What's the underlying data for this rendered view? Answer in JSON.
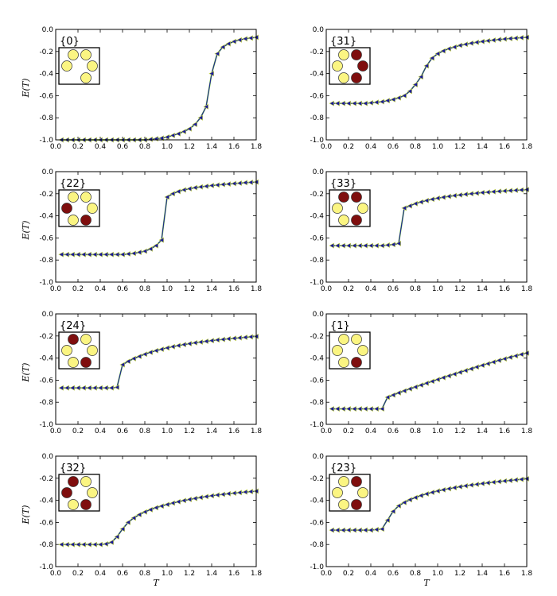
{
  "figure": {
    "xlabel": "T",
    "ylabel": "E(T)"
  },
  "colors": {
    "line_green": "#7ac943",
    "line_blue": "#1a1a9a",
    "marker_fill": "#1a1a9a",
    "marker_edge": "#c8d84a",
    "disk_yellow": "#fbf582",
    "disk_red": "#7f0e0e",
    "axis": "#000000"
  },
  "chart_data": [
    {
      "type": "line",
      "label": "{0}",
      "xlim": [
        0,
        1.8
      ],
      "ylim": [
        -1.0,
        0.0
      ],
      "xticks": [
        "0.0",
        "0.2",
        "0.4",
        "0.6",
        "0.8",
        "1.0",
        "1.2",
        "1.4",
        "1.6",
        "1.8"
      ],
      "yticks": [
        "0.0",
        "-0.2",
        "-0.4",
        "-0.6",
        "-0.8",
        "-1.0"
      ],
      "x": [
        0.05,
        0.1,
        0.15,
        0.2,
        0.25,
        0.3,
        0.35,
        0.4,
        0.45,
        0.5,
        0.55,
        0.6,
        0.65,
        0.7,
        0.75,
        0.8,
        0.85,
        0.9,
        0.95,
        1.0,
        1.05,
        1.1,
        1.15,
        1.2,
        1.25,
        1.3,
        1.35,
        1.4,
        1.45,
        1.5,
        1.55,
        1.6,
        1.65,
        1.7,
        1.75,
        1.8
      ],
      "series": [
        {
          "name": "E",
          "values": [
            -1,
            -1,
            -1,
            -1,
            -1,
            -1,
            -1,
            -1,
            -1,
            -1,
            -1,
            -1,
            -1,
            -1,
            -1,
            -1,
            -0.995,
            -0.99,
            -0.985,
            -0.975,
            -0.96,
            -0.945,
            -0.925,
            -0.9,
            -0.86,
            -0.8,
            -0.7,
            -0.4,
            -0.22,
            -0.16,
            -0.13,
            -0.11,
            -0.095,
            -0.085,
            -0.078,
            -0.072
          ]
        }
      ],
      "disks": [
        "yellow",
        "yellow",
        "yellow",
        "yellow",
        "yellow"
      ]
    },
    {
      "type": "line",
      "label": "{31}",
      "xlim": [
        0,
        1.8
      ],
      "ylim": [
        -1.0,
        0.0
      ],
      "xticks": [
        "0.0",
        "0.2",
        "0.4",
        "0.6",
        "0.8",
        "1.0",
        "1.2",
        "1.4",
        "1.6",
        "1.8"
      ],
      "yticks": [
        "0.0",
        "-0.2",
        "-0.4",
        "-0.6",
        "-0.8",
        "-1.0"
      ],
      "x": [
        0.05,
        0.1,
        0.15,
        0.2,
        0.25,
        0.3,
        0.35,
        0.4,
        0.45,
        0.5,
        0.55,
        0.6,
        0.65,
        0.7,
        0.75,
        0.8,
        0.85,
        0.9,
        0.95,
        1.0,
        1.05,
        1.1,
        1.15,
        1.2,
        1.25,
        1.3,
        1.35,
        1.4,
        1.45,
        1.5,
        1.55,
        1.6,
        1.65,
        1.7,
        1.75,
        1.8
      ],
      "series": [
        {
          "name": "E",
          "values": [
            -0.67,
            -0.67,
            -0.67,
            -0.67,
            -0.67,
            -0.67,
            -0.67,
            -0.665,
            -0.66,
            -0.655,
            -0.645,
            -0.635,
            -0.62,
            -0.6,
            -0.56,
            -0.5,
            -0.43,
            -0.33,
            -0.26,
            -0.22,
            -0.195,
            -0.175,
            -0.16,
            -0.145,
            -0.135,
            -0.125,
            -0.117,
            -0.11,
            -0.103,
            -0.097,
            -0.092,
            -0.087,
            -0.083,
            -0.079,
            -0.075,
            -0.072
          ]
        }
      ],
      "disks": [
        "yellow",
        "red",
        "yellow",
        "red",
        "yellow",
        "red"
      ]
    },
    {
      "type": "line",
      "label": "{22}",
      "xlim": [
        0,
        1.8
      ],
      "ylim": [
        -1.0,
        0.0
      ],
      "xticks": [
        "0.0",
        "0.2",
        "0.4",
        "0.6",
        "0.8",
        "1.0",
        "1.2",
        "1.4",
        "1.6",
        "1.8"
      ],
      "yticks": [
        "0.0",
        "-0.2",
        "-0.4",
        "-0.6",
        "-0.8",
        "-1.0"
      ],
      "x": [
        0.05,
        0.1,
        0.15,
        0.2,
        0.25,
        0.3,
        0.35,
        0.4,
        0.45,
        0.5,
        0.55,
        0.6,
        0.65,
        0.7,
        0.75,
        0.8,
        0.85,
        0.9,
        0.95,
        1.0,
        1.05,
        1.1,
        1.15,
        1.2,
        1.25,
        1.3,
        1.35,
        1.4,
        1.45,
        1.5,
        1.55,
        1.6,
        1.65,
        1.7,
        1.75,
        1.8
      ],
      "series": [
        {
          "name": "E",
          "values": [
            -0.75,
            -0.75,
            -0.75,
            -0.75,
            -0.75,
            -0.75,
            -0.75,
            -0.75,
            -0.75,
            -0.75,
            -0.75,
            -0.75,
            -0.745,
            -0.74,
            -0.73,
            -0.72,
            -0.7,
            -0.67,
            -0.62,
            -0.23,
            -0.2,
            -0.18,
            -0.165,
            -0.155,
            -0.145,
            -0.138,
            -0.132,
            -0.126,
            -0.121,
            -0.116,
            -0.112,
            -0.108,
            -0.104,
            -0.1,
            -0.097,
            -0.094
          ]
        }
      ],
      "disks": [
        "yellow",
        "yellow",
        "red",
        "yellow",
        "yellow",
        "red"
      ]
    },
    {
      "type": "line",
      "label": "{33}",
      "xlim": [
        0,
        1.8
      ],
      "ylim": [
        -1.0,
        0.0
      ],
      "xticks": [
        "0.0",
        "0.2",
        "0.4",
        "0.6",
        "0.8",
        "1.0",
        "1.2",
        "1.4",
        "1.6",
        "1.8"
      ],
      "yticks": [
        "0.0",
        "-0.2",
        "-0.4",
        "-0.6",
        "-0.8",
        "-1.0"
      ],
      "x": [
        0.05,
        0.1,
        0.15,
        0.2,
        0.25,
        0.3,
        0.35,
        0.4,
        0.45,
        0.5,
        0.55,
        0.6,
        0.65,
        0.7,
        0.75,
        0.8,
        0.85,
        0.9,
        0.95,
        1.0,
        1.05,
        1.1,
        1.15,
        1.2,
        1.25,
        1.3,
        1.35,
        1.4,
        1.45,
        1.5,
        1.55,
        1.6,
        1.65,
        1.7,
        1.75,
        1.8
      ],
      "series": [
        {
          "name": "E",
          "values": [
            -0.67,
            -0.67,
            -0.67,
            -0.67,
            -0.67,
            -0.67,
            -0.67,
            -0.67,
            -0.67,
            -0.67,
            -0.665,
            -0.66,
            -0.65,
            -0.33,
            -0.31,
            -0.29,
            -0.275,
            -0.262,
            -0.25,
            -0.24,
            -0.232,
            -0.224,
            -0.217,
            -0.211,
            -0.205,
            -0.2,
            -0.195,
            -0.19,
            -0.186,
            -0.182,
            -0.178,
            -0.175,
            -0.172,
            -0.169,
            -0.166,
            -0.163
          ]
        }
      ],
      "disks": [
        "red",
        "red",
        "yellow",
        "yellow",
        "yellow",
        "red"
      ]
    },
    {
      "type": "line",
      "label": "{24}",
      "xlim": [
        0,
        1.8
      ],
      "ylim": [
        -1.0,
        0.0
      ],
      "xticks": [
        "0.0",
        "0.2",
        "0.4",
        "0.6",
        "0.8",
        "1.0",
        "1.2",
        "1.4",
        "1.6",
        "1.8"
      ],
      "yticks": [
        "0.0",
        "-0.2",
        "-0.4",
        "-0.6",
        "-0.8",
        "-1.0"
      ],
      "x": [
        0.05,
        0.1,
        0.15,
        0.2,
        0.25,
        0.3,
        0.35,
        0.4,
        0.45,
        0.5,
        0.55,
        0.6,
        0.65,
        0.7,
        0.75,
        0.8,
        0.85,
        0.9,
        0.95,
        1.0,
        1.05,
        1.1,
        1.15,
        1.2,
        1.25,
        1.3,
        1.35,
        1.4,
        1.45,
        1.5,
        1.55,
        1.6,
        1.65,
        1.7,
        1.75,
        1.8
      ],
      "series": [
        {
          "name": "E",
          "values": [
            -0.67,
            -0.67,
            -0.67,
            -0.67,
            -0.67,
            -0.67,
            -0.67,
            -0.67,
            -0.67,
            -0.67,
            -0.665,
            -0.46,
            -0.43,
            -0.405,
            -0.385,
            -0.365,
            -0.348,
            -0.333,
            -0.32,
            -0.308,
            -0.297,
            -0.287,
            -0.278,
            -0.27,
            -0.262,
            -0.255,
            -0.248,
            -0.242,
            -0.236,
            -0.231,
            -0.226,
            -0.221,
            -0.217,
            -0.212,
            -0.208,
            -0.204
          ]
        }
      ],
      "disks": [
        "red",
        "yellow",
        "yellow",
        "yellow",
        "yellow",
        "red"
      ]
    },
    {
      "type": "line",
      "label": "{1}",
      "xlim": [
        0,
        1.8
      ],
      "ylim": [
        -1.0,
        0.0
      ],
      "xticks": [
        "0.0",
        "0.2",
        "0.4",
        "0.6",
        "0.8",
        "1.0",
        "1.2",
        "1.4",
        "1.6",
        "1.8"
      ],
      "yticks": [
        "0.0",
        "-0.2",
        "-0.4",
        "-0.6",
        "-0.8",
        "-1.0"
      ],
      "x": [
        0.05,
        0.1,
        0.15,
        0.2,
        0.25,
        0.3,
        0.35,
        0.4,
        0.45,
        0.5,
        0.55,
        0.6,
        0.65,
        0.7,
        0.75,
        0.8,
        0.85,
        0.9,
        0.95,
        1.0,
        1.05,
        1.1,
        1.15,
        1.2,
        1.25,
        1.3,
        1.35,
        1.4,
        1.45,
        1.5,
        1.55,
        1.6,
        1.65,
        1.7,
        1.75,
        1.8
      ],
      "series": [
        {
          "name": "E",
          "values": [
            -0.86,
            -0.86,
            -0.86,
            -0.86,
            -0.86,
            -0.86,
            -0.86,
            -0.86,
            -0.86,
            -0.86,
            -0.755,
            -0.735,
            -0.715,
            -0.697,
            -0.679,
            -0.662,
            -0.645,
            -0.628,
            -0.611,
            -0.594,
            -0.577,
            -0.561,
            -0.545,
            -0.529,
            -0.513,
            -0.497,
            -0.481,
            -0.466,
            -0.451,
            -0.436,
            -0.421,
            -0.407,
            -0.393,
            -0.38,
            -0.367,
            -0.355
          ]
        }
      ],
      "disks": [
        "yellow",
        "yellow",
        "yellow",
        "yellow",
        "yellow",
        "red"
      ]
    },
    {
      "type": "line",
      "label": "{32}",
      "xlim": [
        0,
        1.8
      ],
      "ylim": [
        -1.0,
        0.0
      ],
      "xticks": [
        "0.0",
        "0.2",
        "0.4",
        "0.6",
        "0.8",
        "1.0",
        "1.2",
        "1.4",
        "1.6",
        "1.8"
      ],
      "yticks": [
        "0.0",
        "-0.2",
        "-0.4",
        "-0.6",
        "-0.8",
        "-1.0"
      ],
      "x": [
        0.05,
        0.1,
        0.15,
        0.2,
        0.25,
        0.3,
        0.35,
        0.4,
        0.45,
        0.5,
        0.55,
        0.6,
        0.65,
        0.7,
        0.75,
        0.8,
        0.85,
        0.9,
        0.95,
        1.0,
        1.05,
        1.1,
        1.15,
        1.2,
        1.25,
        1.3,
        1.35,
        1.4,
        1.45,
        1.5,
        1.55,
        1.6,
        1.65,
        1.7,
        1.75,
        1.8
      ],
      "series": [
        {
          "name": "E",
          "values": [
            -0.8,
            -0.8,
            -0.8,
            -0.8,
            -0.8,
            -0.8,
            -0.8,
            -0.8,
            -0.795,
            -0.78,
            -0.73,
            -0.66,
            -0.6,
            -0.56,
            -0.53,
            -0.505,
            -0.485,
            -0.467,
            -0.452,
            -0.438,
            -0.425,
            -0.413,
            -0.402,
            -0.392,
            -0.383,
            -0.374,
            -0.366,
            -0.359,
            -0.352,
            -0.346,
            -0.34,
            -0.335,
            -0.33,
            -0.325,
            -0.321,
            -0.317
          ]
        }
      ],
      "disks": [
        "red",
        "yellow",
        "red",
        "yellow",
        "yellow",
        "red"
      ]
    },
    {
      "type": "line",
      "label": "{23}",
      "xlim": [
        0,
        1.8
      ],
      "ylim": [
        -1.0,
        0.0
      ],
      "xticks": [
        "0.0",
        "0.2",
        "0.4",
        "0.6",
        "0.8",
        "1.0",
        "1.2",
        "1.4",
        "1.6",
        "1.8"
      ],
      "yticks": [
        "0.0",
        "-0.2",
        "-0.4",
        "-0.6",
        "-0.8",
        "-1.0"
      ],
      "x": [
        0.05,
        0.1,
        0.15,
        0.2,
        0.25,
        0.3,
        0.35,
        0.4,
        0.45,
        0.5,
        0.55,
        0.6,
        0.65,
        0.7,
        0.75,
        0.8,
        0.85,
        0.9,
        0.95,
        1.0,
        1.05,
        1.1,
        1.15,
        1.2,
        1.25,
        1.3,
        1.35,
        1.4,
        1.45,
        1.5,
        1.55,
        1.6,
        1.65,
        1.7,
        1.75,
        1.8
      ],
      "series": [
        {
          "name": "E",
          "values": [
            -0.67,
            -0.67,
            -0.67,
            -0.67,
            -0.67,
            -0.67,
            -0.67,
            -0.67,
            -0.665,
            -0.66,
            -0.58,
            -0.5,
            -0.45,
            -0.42,
            -0.395,
            -0.375,
            -0.357,
            -0.342,
            -0.328,
            -0.316,
            -0.305,
            -0.295,
            -0.286,
            -0.277,
            -0.269,
            -0.262,
            -0.255,
            -0.248,
            -0.242,
            -0.236,
            -0.23,
            -0.225,
            -0.22,
            -0.215,
            -0.21,
            -0.205
          ]
        }
      ],
      "disks": [
        "yellow",
        "red",
        "yellow",
        "yellow",
        "yellow",
        "red"
      ]
    }
  ]
}
